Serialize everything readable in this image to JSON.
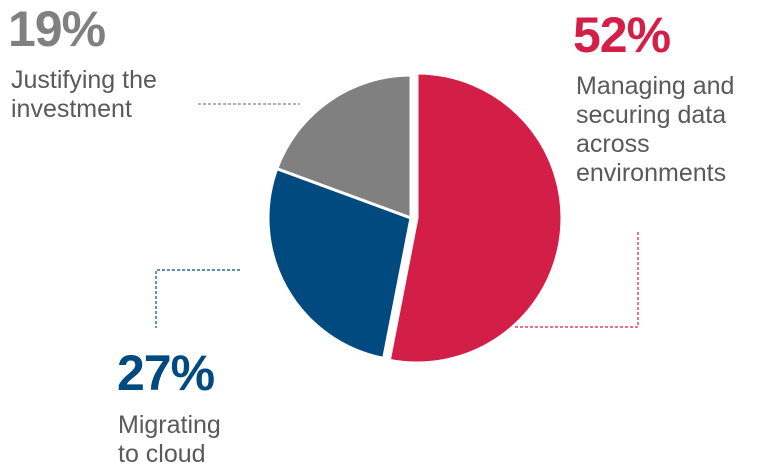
{
  "chart_data": {
    "type": "pie",
    "slices": [
      {
        "label": "Managing and\nsecuring data\nacross\nenvironments",
        "value": 52,
        "value_label": "52%",
        "color": "#d31f48"
      },
      {
        "label": "Migrating\nto cloud",
        "value": 27,
        "value_label": "27%",
        "color": "#004a80"
      },
      {
        "label": "Justifying the\ninvestment",
        "value": 19,
        "value_label": "19%",
        "color": "#808080"
      }
    ],
    "label_color": "#595959",
    "start_angle": "12 o'clock",
    "direction": "clockwise",
    "exploded_slices": "none"
  }
}
